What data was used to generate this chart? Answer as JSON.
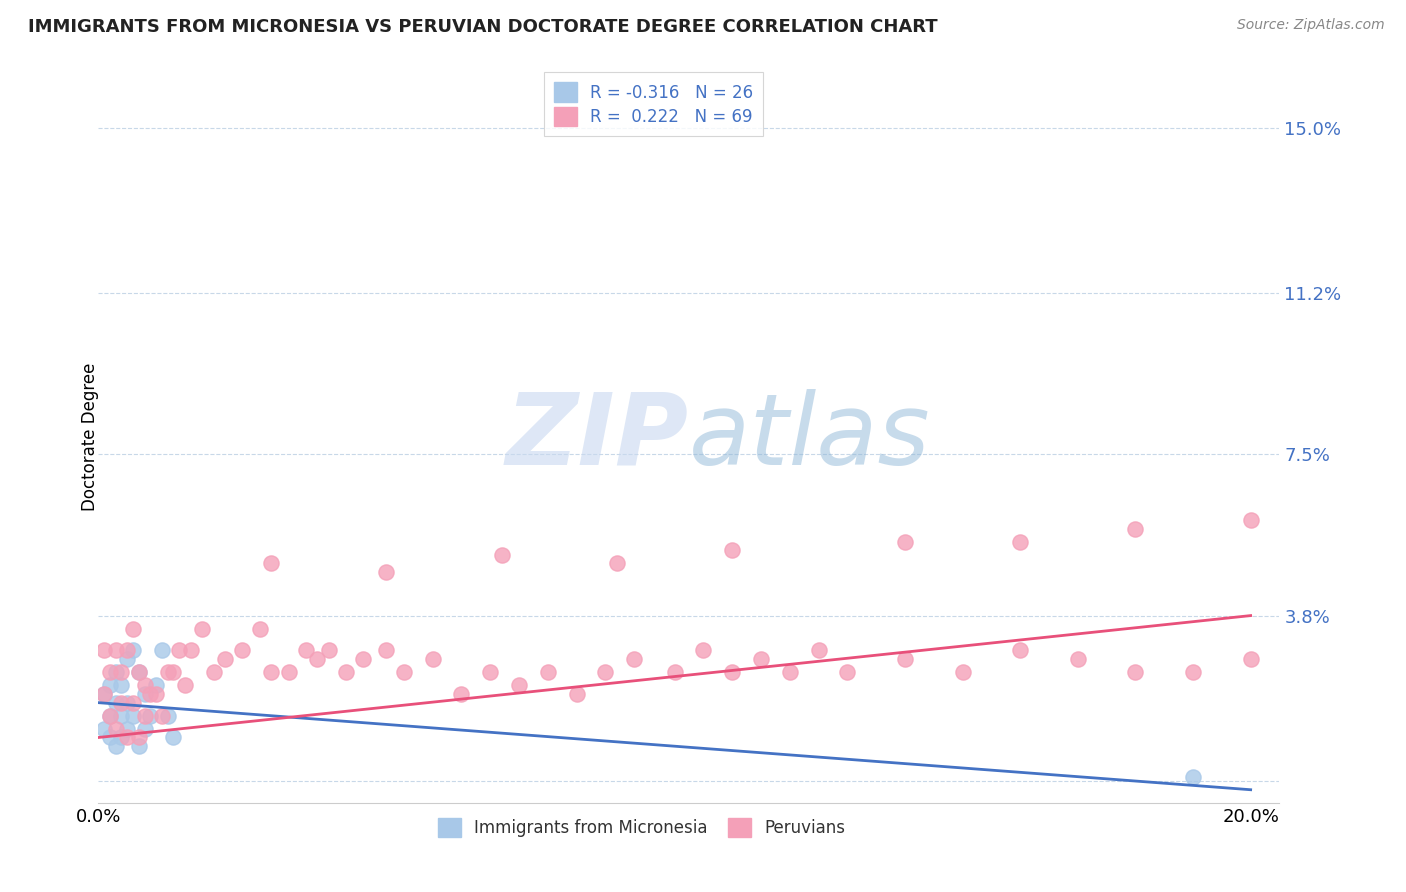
{
  "title": "IMMIGRANTS FROM MICRONESIA VS PERUVIAN DOCTORATE DEGREE CORRELATION CHART",
  "source": "Source: ZipAtlas.com",
  "ylabel": "Doctorate Degree",
  "xlim": [
    0.0,
    0.205
  ],
  "ylim": [
    -0.005,
    0.163
  ],
  "ytick_vals": [
    0.0,
    0.038,
    0.075,
    0.112,
    0.15
  ],
  "ytick_labels": [
    "",
    "3.8%",
    "7.5%",
    "11.2%",
    "15.0%"
  ],
  "xtick_vals": [
    0.0,
    0.05,
    0.1,
    0.15,
    0.2
  ],
  "xtick_labels": [
    "0.0%",
    "",
    "",
    "",
    "20.0%"
  ],
  "color_micronesia": "#a8c8e8",
  "color_peruvian": "#f4a0b8",
  "line_color_micronesia": "#4472c4",
  "line_color_peruvian": "#e8507a",
  "grid_color": "#c8d8e8",
  "watermark_color": "#c8d8f0",
  "mic_line_x0": 0.0,
  "mic_line_y0": 0.018,
  "mic_line_x1": 0.2,
  "mic_line_y1": -0.002,
  "per_line_x0": 0.0,
  "per_line_y0": 0.01,
  "per_line_x1": 0.2,
  "per_line_y1": 0.038,
  "micronesia_x": [
    0.001,
    0.001,
    0.002,
    0.002,
    0.002,
    0.003,
    0.003,
    0.003,
    0.004,
    0.004,
    0.004,
    0.005,
    0.005,
    0.005,
    0.006,
    0.006,
    0.007,
    0.007,
    0.008,
    0.008,
    0.009,
    0.01,
    0.011,
    0.012,
    0.013,
    0.19
  ],
  "micronesia_y": [
    0.012,
    0.02,
    0.015,
    0.022,
    0.01,
    0.018,
    0.025,
    0.008,
    0.022,
    0.015,
    0.01,
    0.028,
    0.018,
    0.012,
    0.03,
    0.015,
    0.025,
    0.008,
    0.02,
    0.012,
    0.015,
    0.022,
    0.03,
    0.015,
    0.01,
    0.001
  ],
  "peruvian_x": [
    0.001,
    0.001,
    0.002,
    0.002,
    0.003,
    0.003,
    0.004,
    0.004,
    0.005,
    0.005,
    0.006,
    0.006,
    0.007,
    0.007,
    0.008,
    0.008,
    0.009,
    0.01,
    0.011,
    0.012,
    0.013,
    0.014,
    0.015,
    0.016,
    0.018,
    0.02,
    0.022,
    0.025,
    0.028,
    0.03,
    0.033,
    0.036,
    0.038,
    0.04,
    0.043,
    0.046,
    0.05,
    0.053,
    0.058,
    0.063,
    0.068,
    0.073,
    0.078,
    0.083,
    0.088,
    0.093,
    0.1,
    0.105,
    0.11,
    0.115,
    0.12,
    0.125,
    0.13,
    0.14,
    0.15,
    0.16,
    0.17,
    0.18,
    0.19,
    0.2,
    0.03,
    0.05,
    0.07,
    0.09,
    0.11,
    0.14,
    0.16,
    0.18,
    0.2
  ],
  "peruvian_y": [
    0.02,
    0.03,
    0.025,
    0.015,
    0.03,
    0.012,
    0.025,
    0.018,
    0.03,
    0.01,
    0.035,
    0.018,
    0.025,
    0.01,
    0.022,
    0.015,
    0.02,
    0.02,
    0.015,
    0.025,
    0.025,
    0.03,
    0.022,
    0.03,
    0.035,
    0.025,
    0.028,
    0.03,
    0.035,
    0.025,
    0.025,
    0.03,
    0.028,
    0.03,
    0.025,
    0.028,
    0.03,
    0.025,
    0.028,
    0.02,
    0.025,
    0.022,
    0.025,
    0.02,
    0.025,
    0.028,
    0.025,
    0.03,
    0.025,
    0.028,
    0.025,
    0.03,
    0.025,
    0.028,
    0.025,
    0.03,
    0.028,
    0.025,
    0.025,
    0.028,
    0.05,
    0.048,
    0.052,
    0.05,
    0.053,
    0.055,
    0.055,
    0.058,
    0.06
  ]
}
